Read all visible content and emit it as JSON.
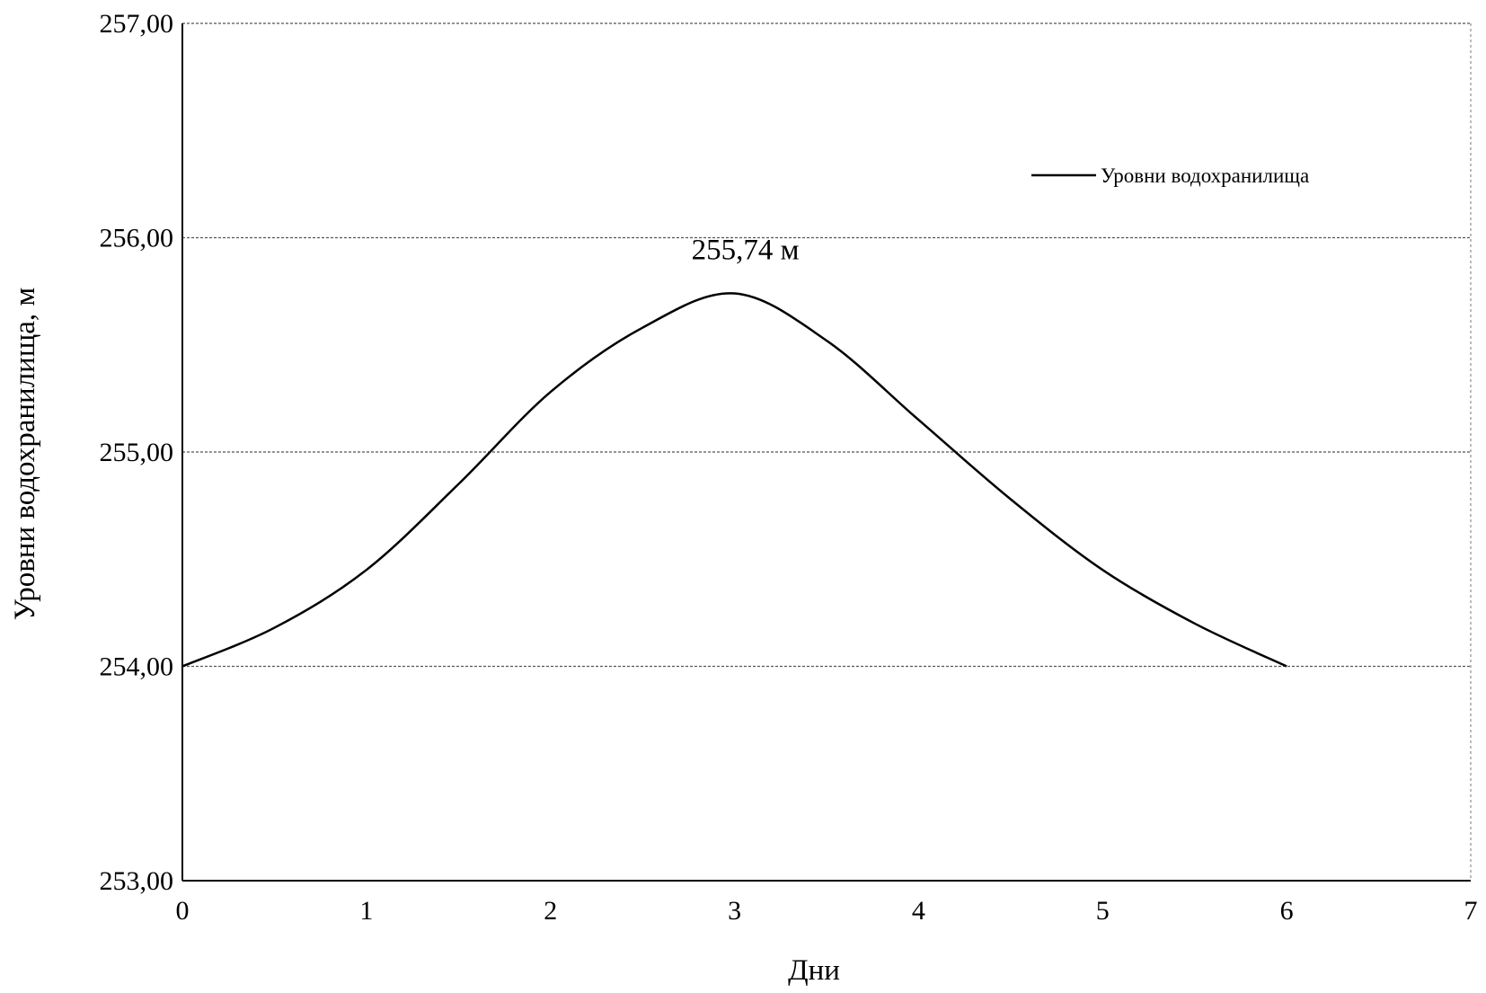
{
  "chart_data": {
    "type": "line",
    "xlabel": "Дни",
    "ylabel": "Уровни водохранилища, м",
    "xlim": [
      0,
      7
    ],
    "ylim": [
      253,
      257
    ],
    "x_ticks": [
      "0",
      "1",
      "2",
      "3",
      "4",
      "5",
      "6",
      "7"
    ],
    "y_ticks": [
      "253,00",
      "254,00",
      "255,00",
      "256,00",
      "257,00"
    ],
    "grid": "horizontal",
    "legend_position": "top-right",
    "series": [
      {
        "name": "Уровни водохранилища",
        "color": "#000000",
        "x": [
          0,
          0.5,
          1,
          1.5,
          2,
          2.5,
          3,
          3.5,
          4,
          4.5,
          5,
          5.5,
          6
        ],
        "y": [
          254.0,
          254.18,
          254.45,
          254.85,
          255.28,
          255.58,
          255.74,
          255.52,
          255.15,
          254.78,
          254.45,
          254.2,
          254.0
        ]
      }
    ],
    "annotations": [
      {
        "text": "255,74 м",
        "x": 3,
        "y": 255.74
      }
    ]
  }
}
